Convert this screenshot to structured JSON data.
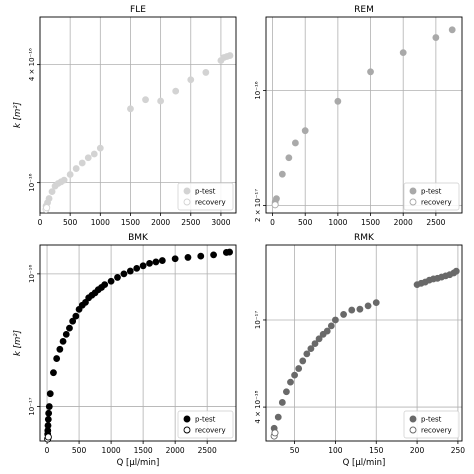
{
  "chart_data": [
    {
      "type": "scatter",
      "title": "FLE",
      "xlabel": "",
      "ylabel": "k [m²]",
      "xscale": "linear",
      "yscale": "log",
      "xlim": [
        0,
        3250
      ],
      "ylim": [
        7e-17,
        7e-16
      ],
      "xticks": [
        0,
        500,
        1000,
        1500,
        2000,
        2500,
        3000
      ],
      "xticklabels": [
        "0",
        "500",
        "1000",
        "1500",
        "2000",
        "2500",
        "3000"
      ],
      "yticks": [
        1e-16,
        4e-16
      ],
      "yticklabels": [
        "10⁻¹⁶",
        "4 × 10⁻¹⁶"
      ],
      "grid": true,
      "legend": {
        "position": "bottom-right",
        "entries": [
          "p-test",
          "recovery"
        ]
      },
      "color": "#d3d3d3",
      "series": [
        {
          "name": "p-test",
          "x": [
            100,
            125,
            150,
            200,
            250,
            300,
            350,
            400,
            500,
            600,
            700,
            800,
            900,
            1000,
            1500,
            1750,
            2000,
            2250,
            2500,
            2750,
            3000,
            3050,
            3100,
            3150
          ],
          "y": [
            7.6e-17,
            7.9e-17,
            8.3e-17,
            9e-17,
            9.6e-17,
            9.9e-17,
            1.01e-16,
            1.03e-16,
            1.1e-16,
            1.18e-16,
            1.26e-16,
            1.34e-16,
            1.4e-16,
            1.5e-16,
            2.38e-16,
            2.65e-16,
            2.61e-16,
            2.93e-16,
            3.35e-16,
            3.65e-16,
            4.2e-16,
            4.35e-16,
            4.4e-16,
            4.45e-16
          ]
        },
        {
          "name": "recovery",
          "x": [
            100,
            110
          ],
          "y": [
            7.3e-17,
            7.45e-17
          ]
        }
      ]
    },
    {
      "type": "scatter",
      "title": "REM",
      "xlabel": "",
      "ylabel": "",
      "xscale": "linear",
      "yscale": "log",
      "xlim": [
        -100,
        2900
      ],
      "ylim": [
        1.8e-17,
        2.8e-16
      ],
      "xticks": [
        0,
        500,
        1000,
        1500,
        2000,
        2500
      ],
      "xticklabels": [
        "0",
        "500",
        "1000",
        "1500",
        "2000",
        "2500"
      ],
      "yticks": [
        2e-17,
        1e-16
      ],
      "yticklabels": [
        "2 × 10⁻¹⁷",
        "10⁻¹⁶"
      ],
      "grid": true,
      "legend": {
        "position": "bottom-right",
        "entries": [
          "p-test",
          "recovery"
        ]
      },
      "color": "#a9a9a9",
      "series": [
        {
          "name": "p-test",
          "x": [
            40,
            60,
            150,
            250,
            350,
            500,
            1000,
            1500,
            2000,
            2500,
            2750
          ],
          "y": [
            2.1e-17,
            2.2e-17,
            3.1e-17,
            3.9e-17,
            4.8e-17,
            5.7e-17,
            8.6e-17,
            1.3e-16,
            1.7e-16,
            2.1e-16,
            2.34e-16
          ]
        },
        {
          "name": "recovery",
          "x": [
            40
          ],
          "y": [
            2.02e-17
          ]
        }
      ]
    },
    {
      "type": "scatter",
      "title": "BMK",
      "xlabel": "Q [µl/min]",
      "ylabel": "k [m²]",
      "xscale": "linear",
      "yscale": "log",
      "xlim": [
        -110,
        2950
      ],
      "ylim": [
        5.5e-18,
        1.65e-16
      ],
      "xticks": [
        0,
        500,
        1000,
        1500,
        2000,
        2500
      ],
      "xticklabels": [
        "0",
        "500",
        "1000",
        "1500",
        "2000",
        "2500"
      ],
      "yticks": [
        1e-17,
        1e-16
      ],
      "yticklabels": [
        "10⁻¹⁷",
        "10⁻¹⁶"
      ],
      "grid": true,
      "legend": {
        "position": "bottom-right",
        "entries": [
          "p-test",
          "recovery"
        ]
      },
      "color": "#000000",
      "series": [
        {
          "name": "p-test",
          "x": [
            10,
            12,
            15,
            20,
            25,
            35,
            50,
            100,
            150,
            200,
            250,
            300,
            350,
            400,
            450,
            500,
            550,
            600,
            650,
            700,
            750,
            800,
            850,
            900,
            1000,
            1100,
            1200,
            1300,
            1400,
            1500,
            1600,
            1700,
            1800,
            2000,
            2200,
            2400,
            2600,
            2800,
            2850
          ],
          "y": [
            6.2e-18,
            6.6e-18,
            7.2e-18,
            8e-18,
            8.9e-18,
            1e-17,
            1.25e-17,
            1.8e-17,
            2.3e-17,
            2.7e-17,
            3.1e-17,
            3.5e-17,
            3.9e-17,
            4.4e-17,
            4.8e-17,
            5.4e-17,
            5.8e-17,
            6.1e-17,
            6.6e-17,
            6.9e-17,
            7.2e-17,
            7.6e-17,
            7.9e-17,
            8.3e-17,
            8.8e-17,
            9.4e-17,
            1e-16,
            1.05e-16,
            1.1e-16,
            1.15e-16,
            1.2e-16,
            1.23e-16,
            1.26e-16,
            1.3e-16,
            1.33e-16,
            1.36e-16,
            1.39e-16,
            1.45e-16,
            1.46e-16
          ]
        },
        {
          "name": "recovery",
          "x": [
            10,
            20
          ],
          "y": [
            5.7e-18,
            5.9e-18
          ]
        }
      ]
    },
    {
      "type": "scatter",
      "title": "RMK",
      "xlabel": "Q [µl/min]",
      "ylabel": "",
      "xscale": "linear",
      "yscale": "log",
      "xlim": [
        15,
        255
      ],
      "ylim": [
        2.8e-18,
        2.2e-17
      ],
      "xticks": [
        50,
        100,
        150,
        200,
        250
      ],
      "xticklabels": [
        "50",
        "100",
        "150",
        "200",
        "250"
      ],
      "yticks": [
        4e-18,
        1e-17
      ],
      "yticklabels": [
        "4 × 10⁻¹⁸",
        "10⁻¹⁷"
      ],
      "grid": true,
      "legend": {
        "position": "bottom-right",
        "entries": [
          "p-test",
          "recovery"
        ]
      },
      "color": "#696969",
      "series": [
        {
          "name": "p-test",
          "x": [
            25,
            30,
            35,
            40,
            45,
            50,
            55,
            60,
            65,
            70,
            75,
            80,
            85,
            90,
            95,
            100,
            110,
            120,
            130,
            140,
            150,
            200,
            205,
            210,
            215,
            220,
            225,
            230,
            235,
            240,
            245,
            248
          ],
          "y": [
            3.2e-18,
            3.6e-18,
            4.2e-18,
            4.7e-18,
            5.2e-18,
            5.6e-18,
            6e-18,
            6.5e-18,
            7e-18,
            7.4e-18,
            7.8e-18,
            8.2e-18,
            8.6e-18,
            8.9e-18,
            9.4e-18,
            1e-17,
            1.06e-17,
            1.11e-17,
            1.12e-17,
            1.16e-17,
            1.2e-17,
            1.45e-17,
            1.47e-17,
            1.49e-17,
            1.52e-17,
            1.54e-17,
            1.55e-17,
            1.57e-17,
            1.59e-17,
            1.61e-17,
            1.64e-17,
            1.67e-17
          ]
        },
        {
          "name": "recovery",
          "x": [
            25,
            26
          ],
          "y": [
            2.95e-18,
            3.05e-18
          ]
        }
      ]
    }
  ]
}
